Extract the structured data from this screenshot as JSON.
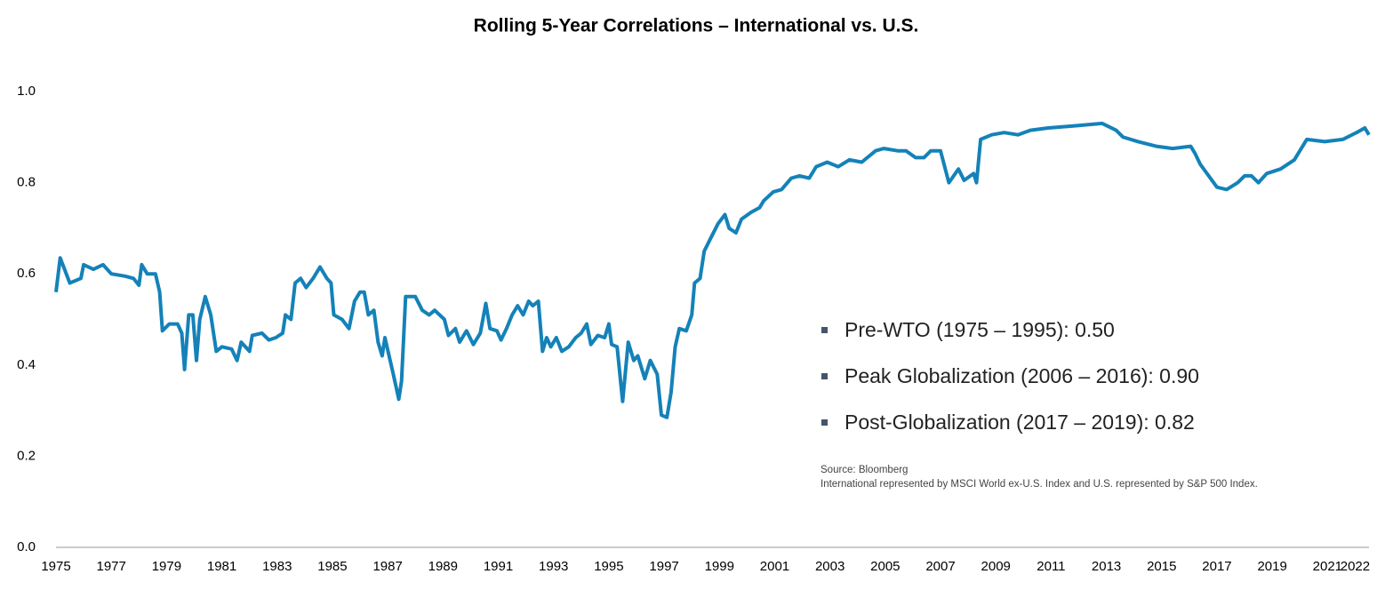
{
  "chart_data": {
    "type": "line",
    "title": "Rolling 5-Year Correlations – International vs. U.S.",
    "annotations": [
      "Pre-WTO (1975 – 1995): 0.50",
      "Peak Globalization (2006 – 2016): 0.90",
      "Post-Globalization (2017 – 2019): 0.82"
    ],
    "notes": [
      "Source: Bloomberg",
      "International represented by MSCI World ex-U.S. Index and U.S. represented by S&P 500 Index."
    ],
    "xlim": [
      1975,
      2022.5
    ],
    "xticks": [
      1975,
      1977,
      1979,
      1981,
      1983,
      1985,
      1987,
      1989,
      1991,
      1993,
      1995,
      1997,
      1999,
      2001,
      2003,
      2005,
      2007,
      2009,
      2011,
      2013,
      2015,
      2017,
      2019,
      2021,
      2022
    ],
    "ylim": [
      0,
      1.0
    ],
    "yticks": [
      {
        "value": 0,
        "label": "0.0"
      },
      0.2,
      0.4,
      0.6,
      0.8,
      {
        "value": 1.0,
        "label": "1.0"
      }
    ],
    "grid": false,
    "x": [
      1975.0,
      1975.15,
      1975.5,
      1975.9,
      1976.0,
      1976.35,
      1976.7,
      1977.0,
      1977.5,
      1977.8,
      1978.0,
      1978.1,
      1978.3,
      1978.6,
      1978.75,
      1978.85,
      1979.1,
      1979.4,
      1979.55,
      1979.65,
      1979.8,
      1979.95,
      1980.08,
      1980.2,
      1980.4,
      1980.6,
      1980.8,
      1981.0,
      1981.35,
      1981.55,
      1981.7,
      1982.0,
      1982.1,
      1982.45,
      1982.7,
      1982.95,
      1983.2,
      1983.3,
      1983.5,
      1983.65,
      1983.85,
      1984.05,
      1984.3,
      1984.55,
      1984.8,
      1984.95,
      1985.05,
      1985.35,
      1985.6,
      1985.8,
      1986.0,
      1986.15,
      1986.3,
      1986.5,
      1986.65,
      1986.8,
      1986.9,
      1987.05,
      1987.2,
      1987.4,
      1987.5,
      1987.65,
      1988.0,
      1988.25,
      1988.5,
      1988.7,
      1989.05,
      1989.2,
      1989.45,
      1989.6,
      1989.85,
      1990.1,
      1990.35,
      1990.55,
      1990.7,
      1990.95,
      1991.1,
      1991.3,
      1991.5,
      1991.7,
      1991.9,
      1992.1,
      1992.25,
      1992.45,
      1992.6,
      1992.75,
      1992.9,
      1993.1,
      1993.3,
      1993.55,
      1993.8,
      1994.0,
      1994.2,
      1994.35,
      1994.6,
      1994.85,
      1995.0,
      1995.1,
      1995.3,
      1995.5,
      1995.7,
      1995.9,
      1996.05,
      1996.3,
      1996.5,
      1996.75,
      1996.9,
      1997.1,
      1997.25,
      1997.4,
      1997.55,
      1997.8,
      1998.0,
      1998.1,
      1998.3,
      1998.45,
      1998.7,
      1998.95,
      1999.2,
      1999.35,
      1999.6,
      1999.8,
      2000.15,
      2000.45,
      2000.6,
      2000.95,
      2001.25,
      2001.6,
      2001.9,
      2002.25,
      2002.5,
      2002.9,
      2003.3,
      2003.7,
      2004.15,
      2004.65,
      2004.95,
      2005.45,
      2005.75,
      2006.1,
      2006.4,
      2006.65,
      2007.0,
      2007.3,
      2007.65,
      2007.85,
      2008.2,
      2008.3,
      2008.45,
      2008.85,
      2009.3,
      2009.8,
      2010.25,
      2010.9,
      2011.9,
      2012.85,
      2013.35,
      2013.6,
      2014.15,
      2014.8,
      2015.4,
      2016.05,
      2016.2,
      2016.4,
      2016.7,
      2017.0,
      2017.35,
      2017.75,
      2018.0,
      2018.25,
      2018.5,
      2018.8,
      2019.3,
      2019.8,
      2020.25,
      2020.9,
      2021.55,
      2022.05,
      2022.35,
      2022.5
    ],
    "series": [
      {
        "color": "#1482b8",
        "values": [
          0.56,
          0.635,
          0.58,
          0.59,
          0.62,
          0.61,
          0.62,
          0.6,
          0.595,
          0.59,
          0.575,
          0.62,
          0.6,
          0.6,
          0.56,
          0.475,
          0.49,
          0.49,
          0.47,
          0.39,
          0.51,
          0.51,
          0.41,
          0.5,
          0.55,
          0.51,
          0.43,
          0.44,
          0.435,
          0.41,
          0.45,
          0.43,
          0.465,
          0.47,
          0.455,
          0.46,
          0.47,
          0.51,
          0.5,
          0.58,
          0.59,
          0.57,
          0.59,
          0.615,
          0.59,
          0.58,
          0.51,
          0.5,
          0.48,
          0.54,
          0.56,
          0.56,
          0.51,
          0.52,
          0.45,
          0.42,
          0.46,
          0.42,
          0.38,
          0.325,
          0.365,
          0.55,
          0.55,
          0.52,
          0.51,
          0.52,
          0.5,
          0.465,
          0.48,
          0.45,
          0.475,
          0.445,
          0.47,
          0.535,
          0.48,
          0.475,
          0.455,
          0.48,
          0.51,
          0.53,
          0.51,
          0.54,
          0.53,
          0.54,
          0.43,
          0.46,
          0.44,
          0.46,
          0.43,
          0.44,
          0.46,
          0.47,
          0.49,
          0.445,
          0.465,
          0.46,
          0.49,
          0.445,
          0.44,
          0.32,
          0.45,
          0.41,
          0.42,
          0.37,
          0.41,
          0.38,
          0.29,
          0.285,
          0.34,
          0.44,
          0.48,
          0.475,
          0.51,
          0.58,
          0.59,
          0.65,
          0.68,
          0.71,
          0.73,
          0.7,
          0.69,
          0.72,
          0.735,
          0.745,
          0.76,
          0.78,
          0.785,
          0.81,
          0.815,
          0.81,
          0.835,
          0.845,
          0.835,
          0.85,
          0.845,
          0.87,
          0.875,
          0.87,
          0.87,
          0.855,
          0.855,
          0.87,
          0.87,
          0.8,
          0.83,
          0.805,
          0.82,
          0.8,
          0.895,
          0.905,
          0.91,
          0.905,
          0.915,
          0.92,
          0.925,
          0.93,
          0.915,
          0.9,
          0.89,
          0.88,
          0.875,
          0.88,
          0.865,
          0.84,
          0.815,
          0.79,
          0.785,
          0.8,
          0.815,
          0.815,
          0.8,
          0.82,
          0.83,
          0.85,
          0.895,
          0.89,
          0.895,
          0.91,
          0.92,
          0.905
        ]
      }
    ]
  }
}
